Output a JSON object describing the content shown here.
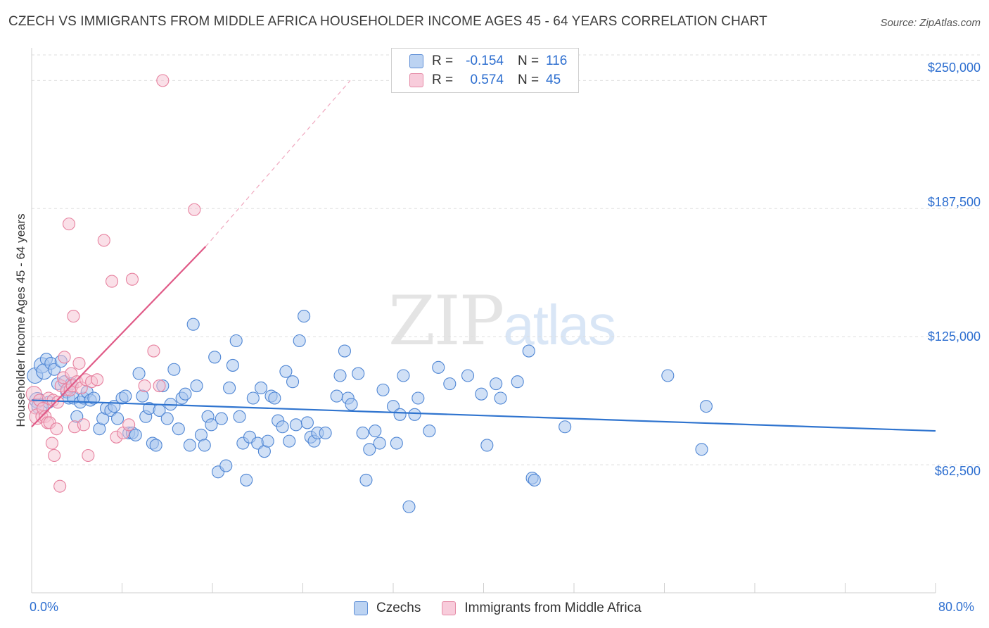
{
  "title": "CZECH VS IMMIGRANTS FROM MIDDLE AFRICA HOUSEHOLDER INCOME AGES 45 - 64 YEARS CORRELATION CHART",
  "source": "Source: ZipAtlas.com",
  "watermark": {
    "zip": "ZIP",
    "atlas": "atlas"
  },
  "legend": {
    "czech": {
      "r_label": "R =",
      "r_value": "-0.154",
      "n_label": "N =",
      "n_value": "116"
    },
    "africa": {
      "r_label": "R =",
      "r_value": "0.574",
      "n_label": "N =",
      "n_value": "45"
    }
  },
  "bottom_legend": {
    "czech": "Czechs",
    "africa": "Immigrants from Middle Africa"
  },
  "colors": {
    "czech_fill": "#a9c7ef",
    "czech_stroke": "#4f86d4",
    "czech_line": "#2f74cf",
    "africa_fill": "#f6c1d1",
    "africa_stroke": "#e7819f",
    "africa_line": "#e05a87",
    "axis_text": "#2e6fd0",
    "grid": "#dedede"
  },
  "chart_data": {
    "type": "scatter",
    "title": "CZECH VS IMMIGRANTS FROM MIDDLE AFRICA HOUSEHOLDER INCOME AGES 45 - 64 YEARS CORRELATION CHART",
    "xlabel": "",
    "ylabel": "Householder Income Ages 45 - 64 years",
    "xlim": [
      0,
      80
    ],
    "ylim": [
      0,
      262500
    ],
    "x_tick_labels": [
      "0.0%",
      "80.0%"
    ],
    "y_ticks": [
      62500,
      125000,
      187500,
      250000
    ],
    "y_tick_labels": [
      "$62,500",
      "$125,000",
      "$187,500",
      "$250,000"
    ],
    "grid": true,
    "series": [
      {
        "name": "Czechs",
        "trend": {
          "x": [
            0,
            80
          ],
          "y": [
            94000,
            79000
          ],
          "dashed_extension": false
        },
        "points": [
          [
            0.3,
            106000
          ],
          [
            0.5,
            94000
          ],
          [
            0.7,
            91000
          ],
          [
            0.9,
            111000
          ],
          [
            1.1,
            108000
          ],
          [
            1.3,
            114000
          ],
          [
            1.5,
            93000
          ],
          [
            1.7,
            112000
          ],
          [
            2.0,
            109000
          ],
          [
            2.3,
            102000
          ],
          [
            2.6,
            113000
          ],
          [
            2.9,
            103000
          ],
          [
            3.1,
            98000
          ],
          [
            3.3,
            95000
          ],
          [
            3.5,
            102000
          ],
          [
            3.7,
            95000
          ],
          [
            4.0,
            86000
          ],
          [
            4.3,
            93000
          ],
          [
            4.6,
            95000
          ],
          [
            4.9,
            98000
          ],
          [
            5.2,
            94000
          ],
          [
            5.5,
            95000
          ],
          [
            6.0,
            80000
          ],
          [
            6.3,
            85000
          ],
          [
            6.6,
            90000
          ],
          [
            7.0,
            89000
          ],
          [
            7.3,
            91000
          ],
          [
            7.6,
            85000
          ],
          [
            8.0,
            95000
          ],
          [
            8.3,
            96000
          ],
          [
            8.6,
            78000
          ],
          [
            8.9,
            78000
          ],
          [
            9.2,
            77000
          ],
          [
            9.5,
            107000
          ],
          [
            9.8,
            96000
          ],
          [
            10.1,
            86000
          ],
          [
            10.4,
            90000
          ],
          [
            10.7,
            73000
          ],
          [
            11.0,
            72000
          ],
          [
            11.3,
            89000
          ],
          [
            11.6,
            101000
          ],
          [
            12.0,
            85000
          ],
          [
            12.3,
            92000
          ],
          [
            12.6,
            109000
          ],
          [
            13.0,
            80000
          ],
          [
            13.3,
            95000
          ],
          [
            13.6,
            97000
          ],
          [
            14.0,
            72000
          ],
          [
            14.3,
            131000
          ],
          [
            14.6,
            101000
          ],
          [
            15.0,
            77000
          ],
          [
            15.3,
            72000
          ],
          [
            15.6,
            86000
          ],
          [
            15.9,
            82000
          ],
          [
            16.2,
            115000
          ],
          [
            16.5,
            59000
          ],
          [
            16.8,
            85000
          ],
          [
            17.2,
            62000
          ],
          [
            17.5,
            100000
          ],
          [
            17.8,
            111000
          ],
          [
            18.1,
            123000
          ],
          [
            18.4,
            86000
          ],
          [
            18.7,
            73000
          ],
          [
            19.0,
            55000
          ],
          [
            19.3,
            76000
          ],
          [
            19.6,
            95000
          ],
          [
            20.0,
            73000
          ],
          [
            20.3,
            100000
          ],
          [
            20.6,
            69000
          ],
          [
            20.9,
            74000
          ],
          [
            21.2,
            96000
          ],
          [
            21.5,
            95000
          ],
          [
            21.8,
            84000
          ],
          [
            22.2,
            81000
          ],
          [
            22.5,
            108000
          ],
          [
            22.8,
            74000
          ],
          [
            23.1,
            103000
          ],
          [
            23.4,
            82000
          ],
          [
            24.1,
            135000
          ],
          [
            24.4,
            83000
          ],
          [
            24.7,
            76000
          ],
          [
            25.0,
            74000
          ],
          [
            25.3,
            78000
          ],
          [
            26.0,
            78000
          ],
          [
            27.0,
            96000
          ],
          [
            27.3,
            106000
          ],
          [
            27.7,
            118000
          ],
          [
            28.0,
            95000
          ],
          [
            28.3,
            92000
          ],
          [
            28.9,
            107000
          ],
          [
            29.3,
            78000
          ],
          [
            29.6,
            55000
          ],
          [
            29.9,
            70000
          ],
          [
            30.4,
            79000
          ],
          [
            30.8,
            73000
          ],
          [
            31.1,
            99000
          ],
          [
            32.0,
            91000
          ],
          [
            32.3,
            73000
          ],
          [
            32.6,
            87000
          ],
          [
            32.9,
            106000
          ],
          [
            33.4,
            42000
          ],
          [
            33.9,
            87000
          ],
          [
            34.2,
            95000
          ],
          [
            35.2,
            79000
          ],
          [
            36.0,
            110000
          ],
          [
            37.0,
            102000
          ],
          [
            38.6,
            106000
          ],
          [
            39.8,
            97000
          ],
          [
            40.3,
            72000
          ],
          [
            41.1,
            102000
          ],
          [
            41.5,
            95000
          ],
          [
            44.0,
            118000
          ],
          [
            44.3,
            56000
          ],
          [
            44.5,
            55000
          ],
          [
            47.2,
            81000
          ],
          [
            56.3,
            106000
          ],
          [
            59.3,
            70000
          ],
          [
            59.7,
            91000
          ],
          [
            43.0,
            103000
          ],
          [
            23.7,
            123000
          ]
        ]
      },
      {
        "name": "Immigrants from Middle Africa",
        "trend": {
          "x": [
            0,
            15.4
          ],
          "y": [
            81000,
            169000
          ],
          "dashed_extension": true,
          "extension_to": [
            28.2,
            250000
          ]
        },
        "points": [
          [
            0.2,
            97000
          ],
          [
            0.4,
            91000
          ],
          [
            0.5,
            86000
          ],
          [
            0.7,
            94000
          ],
          [
            0.9,
            86000
          ],
          [
            1.0,
            90000
          ],
          [
            1.2,
            86000
          ],
          [
            1.4,
            83000
          ],
          [
            1.5,
            95000
          ],
          [
            1.6,
            83000
          ],
          [
            1.8,
            73000
          ],
          [
            1.9,
            94000
          ],
          [
            2.0,
            67000
          ],
          [
            2.2,
            80000
          ],
          [
            2.3,
            93000
          ],
          [
            2.5,
            52000
          ],
          [
            2.6,
            101000
          ],
          [
            2.8,
            105000
          ],
          [
            2.9,
            115000
          ],
          [
            3.1,
            99000
          ],
          [
            3.3,
            180000
          ],
          [
            3.4,
            99000
          ],
          [
            3.5,
            107000
          ],
          [
            3.6,
            101000
          ],
          [
            3.8,
            81000
          ],
          [
            4.0,
            103000
          ],
          [
            4.2,
            112000
          ],
          [
            4.4,
            100000
          ],
          [
            4.6,
            82000
          ],
          [
            4.8,
            104000
          ],
          [
            5.0,
            67000
          ],
          [
            5.3,
            103000
          ],
          [
            5.8,
            104000
          ],
          [
            6.4,
            172000
          ],
          [
            7.1,
            152000
          ],
          [
            7.5,
            76000
          ],
          [
            8.1,
            78000
          ],
          [
            8.9,
            153000
          ],
          [
            8.6,
            82000
          ],
          [
            10.0,
            101000
          ],
          [
            11.3,
            101000
          ],
          [
            11.6,
            250000
          ],
          [
            14.4,
            187000
          ],
          [
            10.8,
            118000
          ],
          [
            3.7,
            135000
          ]
        ]
      }
    ]
  }
}
